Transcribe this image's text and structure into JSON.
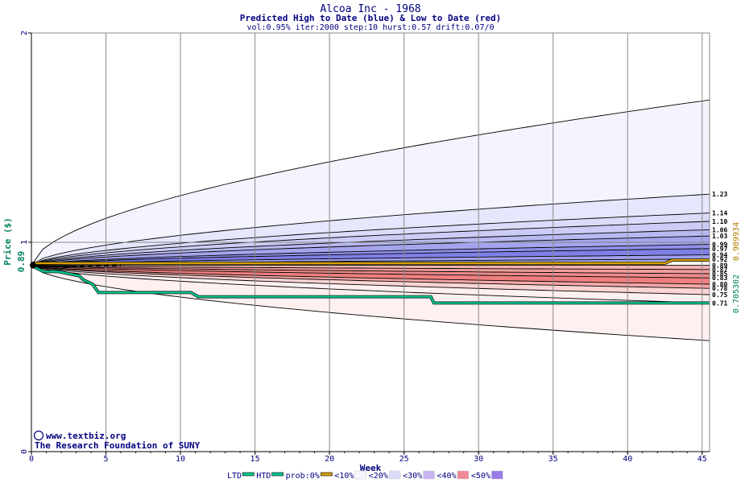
{
  "chart_data": {
    "type": "line",
    "title": "Alcoa Inc - 1968",
    "subtitle": "Predicted High to Date (blue) &  Low to Date (red)",
    "params": "vol:0.95% iter:2000 step:10 hurst:0.57 drift:0.07/0",
    "xlabel": "Week",
    "ylabel": "Price ($)",
    "xlim": [
      0,
      45.5
    ],
    "ylim": [
      0,
      2
    ],
    "x_ticks": [
      0,
      5,
      10,
      15,
      20,
      25,
      30,
      35,
      40,
      45
    ],
    "y_ticks": [
      0,
      1,
      2
    ],
    "current_price_label": "0.89",
    "current_price": 0.89,
    "side_value_green": "0.705302",
    "side_value_orange": "0.909934",
    "credit_line1": "www.textbiz.org",
    "credit_line2": "The Research Foundation of SUNY",
    "copyright_symbol": "©",
    "colors": {
      "htd": "#00c890",
      "ltd": "#00c890",
      "prob": "#d4a000",
      "blue_band": "#6a6ae8",
      "red_band": "#f06060",
      "title": "#000080",
      "axis_label_green": "#008060"
    },
    "legend": [
      {
        "label": "LTD",
        "kind": "line",
        "color": "#00c890"
      },
      {
        "label": "HTD",
        "kind": "line",
        "color": "#00c890"
      },
      {
        "label": "prob:0%",
        "kind": "line",
        "color": "#d4a000"
      },
      {
        "label": "<10%",
        "kind": "swatch",
        "color": "#f4f4ff"
      },
      {
        "label": "<20%",
        "kind": "swatch",
        "color": "#dcdcfa"
      },
      {
        "label": "<30%",
        "kind": "swatch",
        "color": "#c8b4f0"
      },
      {
        "label": "<40%",
        "kind": "swatch",
        "color": "#f08a96"
      },
      {
        "label": "<50%",
        "kind": "swatch",
        "color": "#9a7ae8"
      }
    ],
    "upper_bands": [
      {
        "label": "",
        "end": 1.68
      },
      {
        "label": "1.23",
        "end": 1.23
      },
      {
        "label": "1.14",
        "end": 1.14
      },
      {
        "label": "1.10",
        "end": 1.1
      },
      {
        "label": "1.06",
        "end": 1.06
      },
      {
        "label": "1.03",
        "end": 1.03
      },
      {
        "label": "0.99",
        "end": 0.99
      },
      {
        "label": "0.97",
        "end": 0.97
      },
      {
        "label": "0.94",
        "end": 0.94
      },
      {
        "label": "0.92",
        "end": 0.92
      }
    ],
    "lower_bands": [
      {
        "label": "0.89",
        "end": 0.89
      },
      {
        "label": "0.87",
        "end": 0.87
      },
      {
        "label": "0.85",
        "end": 0.85
      },
      {
        "label": "0.83",
        "end": 0.83
      },
      {
        "label": "0.80",
        "end": 0.8
      },
      {
        "label": "0.78",
        "end": 0.78
      },
      {
        "label": "0.75",
        "end": 0.75
      },
      {
        "label": "0.71",
        "end": 0.71
      },
      {
        "label": "",
        "end": 0.53
      }
    ],
    "prob_line": {
      "x": [
        0,
        42.5,
        43,
        45.5
      ],
      "y": [
        0.9,
        0.9,
        0.915,
        0.915
      ]
    },
    "ltd_line": {
      "x": [
        0,
        0.8,
        1.8,
        3.2,
        3.5,
        3.8,
        4.1,
        4.5,
        10.7,
        11.2,
        26.8,
        27.0,
        45.5
      ],
      "y": [
        0.89,
        0.86,
        0.86,
        0.84,
        0.82,
        0.81,
        0.8,
        0.76,
        0.76,
        0.74,
        0.74,
        0.71,
        0.71
      ]
    },
    "htd_line": {
      "x": [
        0,
        45.5
      ],
      "y": [
        0.89,
        0.89
      ]
    }
  }
}
